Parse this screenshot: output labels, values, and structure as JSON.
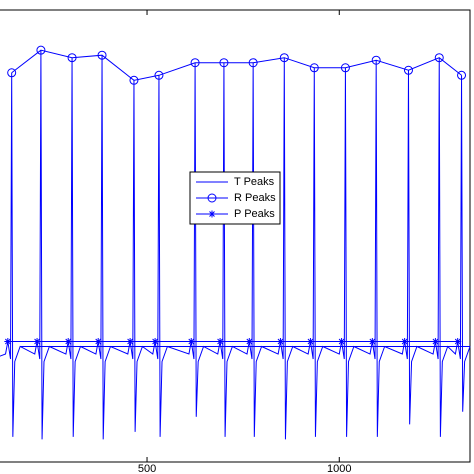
{
  "chart_data": {
    "type": "line",
    "xlim": [
      115,
      1340
    ],
    "ylim": [
      -0.4,
      1.4
    ],
    "xticks": [
      500,
      1000
    ],
    "legend": "center",
    "series": [
      {
        "color": "#0000ff",
        "marker": "none",
        "x": [
          115,
          132,
          138,
          145,
          148,
          151,
          156,
          170,
          208,
          214,
          221,
          224,
          227,
          232,
          246,
          289,
          295,
          302,
          305,
          308,
          313,
          327,
          367,
          373,
          380,
          383,
          386,
          391,
          405,
          450,
          456,
          463,
          466,
          469,
          474,
          488,
          515,
          521,
          528,
          531,
          534,
          539,
          553,
          609,
          615,
          622,
          625,
          628,
          633,
          647,
          684,
          690,
          697,
          700,
          703,
          708,
          722,
          760,
          766,
          773,
          776,
          779,
          784,
          798,
          841,
          847,
          854,
          857,
          860,
          865,
          879,
          919,
          925,
          932,
          935,
          938,
          943,
          957,
          1000,
          1006,
          1013,
          1016,
          1019,
          1024,
          1038,
          1080,
          1086,
          1093,
          1096,
          1099,
          1104,
          1118,
          1164,
          1170,
          1177,
          1180,
          1183,
          1188,
          1202,
          1244,
          1250,
          1257,
          1260,
          1263,
          1268,
          1282,
          1302,
          1308,
          1315,
          1318,
          1321,
          1326,
          1340
        ],
        "values": [
          0.02,
          0.03,
          0.08,
          0.01,
          1.15,
          -0.3,
          0.0,
          0.06,
          0.03,
          0.08,
          0.01,
          1.24,
          -0.31,
          0.0,
          0.06,
          0.03,
          0.08,
          0.01,
          1.21,
          -0.3,
          0.0,
          0.06,
          0.03,
          0.08,
          0.01,
          1.22,
          -0.31,
          0.0,
          0.06,
          0.03,
          0.08,
          0.01,
          1.12,
          -0.28,
          0.0,
          0.06,
          0.03,
          0.08,
          0.01,
          1.14,
          -0.3,
          0.0,
          0.06,
          0.03,
          0.08,
          0.01,
          1.19,
          -0.22,
          0.0,
          0.06,
          0.03,
          0.08,
          0.01,
          1.19,
          -0.3,
          0.0,
          0.06,
          0.03,
          0.08,
          0.01,
          1.19,
          -0.3,
          0.0,
          0.06,
          0.03,
          0.08,
          0.01,
          1.21,
          -0.31,
          0.0,
          0.06,
          0.03,
          0.08,
          0.01,
          1.17,
          -0.3,
          0.0,
          0.06,
          0.03,
          0.08,
          0.01,
          1.17,
          -0.3,
          0.0,
          0.06,
          0.03,
          0.08,
          0.01,
          1.2,
          -0.3,
          0.0,
          0.06,
          0.03,
          0.08,
          0.01,
          1.16,
          -0.25,
          0.0,
          0.06,
          0.03,
          0.08,
          0.01,
          1.21,
          -0.3,
          0.0,
          0.06,
          0.03,
          0.08,
          0.01,
          1.14,
          -0.2,
          0.0,
          0.06
        ]
      },
      {
        "name": "T Peaks",
        "color": "#0000ff",
        "marker": "none",
        "x": [
          170,
          246,
          327,
          405,
          488,
          553,
          647,
          722,
          798,
          879,
          957,
          1038,
          1118,
          1202,
          1282,
          1340
        ],
        "values": [
          0.06,
          0.06,
          0.06,
          0.06,
          0.06,
          0.06,
          0.06,
          0.06,
          0.06,
          0.06,
          0.06,
          0.06,
          0.06,
          0.06,
          0.06,
          0.06
        ]
      },
      {
        "name": "R Peaks",
        "color": "#0000ff",
        "marker": "circle",
        "x": [
          148,
          224,
          305,
          383,
          466,
          531,
          625,
          700,
          776,
          857,
          935,
          1016,
          1096,
          1180,
          1260,
          1318
        ],
        "values": [
          1.15,
          1.24,
          1.21,
          1.22,
          1.12,
          1.14,
          1.19,
          1.19,
          1.19,
          1.21,
          1.17,
          1.17,
          1.2,
          1.16,
          1.21,
          1.14
        ]
      },
      {
        "name": "P Peaks",
        "color": "#0000ff",
        "marker": "star",
        "x": [
          138,
          214,
          295,
          373,
          456,
          521,
          615,
          690,
          766,
          847,
          925,
          1006,
          1086,
          1170,
          1250,
          1308
        ],
        "values": [
          0.08,
          0.08,
          0.08,
          0.08,
          0.08,
          0.08,
          0.08,
          0.08,
          0.08,
          0.08,
          0.08,
          0.08,
          0.08,
          0.08,
          0.08,
          0.08
        ]
      }
    ]
  }
}
